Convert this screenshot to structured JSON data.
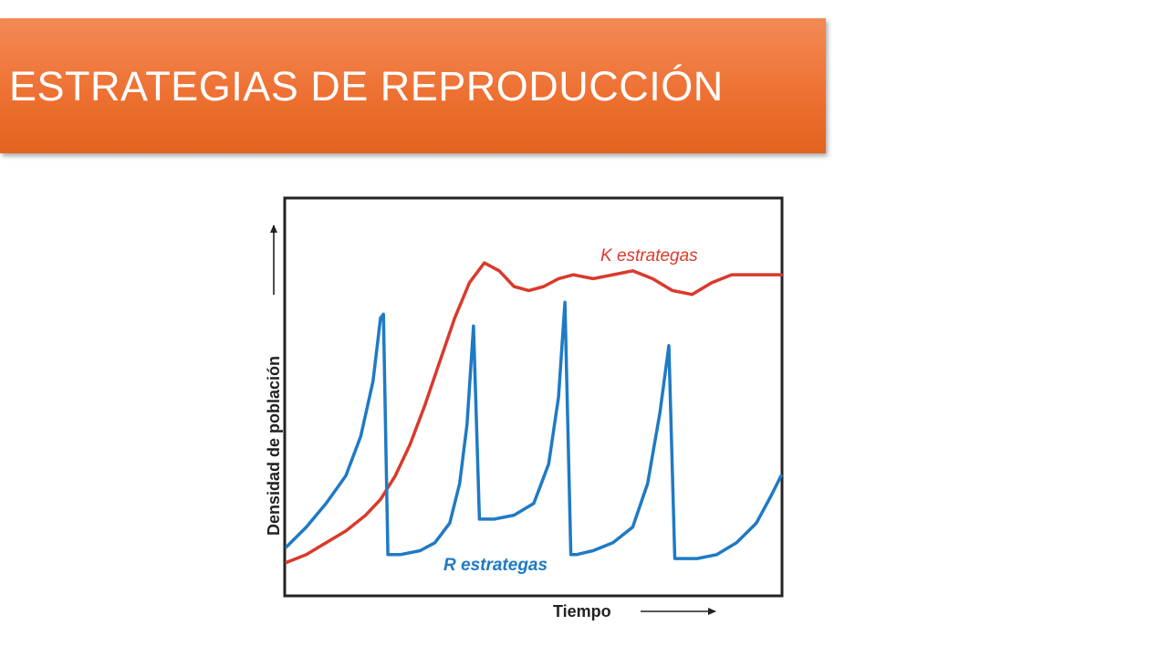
{
  "slide": {
    "title": "ESTRATEGIAS DE REPRODUCCIÓN"
  },
  "colors": {
    "banner": "#ee7133",
    "k_series": "#d93a2b",
    "r_series": "#1f7ac4",
    "frame": "#222222"
  },
  "chart_data": {
    "type": "line",
    "title": "",
    "xlabel": "Tiempo",
    "ylabel": "Densidad de población",
    "xlim": [
      0,
      100
    ],
    "ylim": [
      0,
      100
    ],
    "grid": false,
    "series": [
      {
        "name": "K estrategas",
        "color": "#d93a2b",
        "x": [
          0,
          4,
          8,
          12,
          16,
          19,
          22,
          25,
          28,
          31,
          34,
          37,
          40,
          43,
          46,
          49,
          52,
          55,
          58,
          62,
          66,
          70,
          74,
          78,
          82,
          86,
          90,
          94,
          98,
          100
        ],
        "y": [
          8,
          10,
          13,
          16,
          20,
          24,
          30,
          38,
          48,
          59,
          70,
          79,
          84,
          82,
          78,
          77,
          78,
          80,
          81,
          80,
          81,
          82,
          80,
          77,
          76,
          79,
          81,
          81,
          81,
          81
        ]
      },
      {
        "name": "R estrategas",
        "color": "#1f7ac4",
        "x": [
          0,
          4,
          8,
          12,
          15,
          17.5,
          19,
          19.6,
          20.5,
          23,
          27,
          30,
          33,
          35,
          36.5,
          37.8,
          39,
          42,
          46,
          50,
          53,
          55,
          56.3,
          57.5,
          58.6,
          62,
          66,
          70,
          73,
          75.5,
          77.3,
          78.5,
          79.2,
          83,
          87,
          91,
          95,
          98,
          100
        ],
        "y": [
          12,
          17,
          23,
          30,
          40,
          54,
          70,
          71,
          10,
          10,
          11,
          13,
          18,
          28,
          43,
          68,
          19,
          19,
          20,
          23,
          33,
          50,
          74,
          10,
          10,
          11,
          13,
          17,
          28,
          46,
          63,
          9,
          9,
          9,
          10,
          13,
          18,
          25,
          30
        ]
      }
    ],
    "annotations": [
      {
        "text": "K estrategas",
        "series": "K estrategas"
      },
      {
        "text": "R estrategas",
        "series": "R estrategas"
      }
    ]
  }
}
